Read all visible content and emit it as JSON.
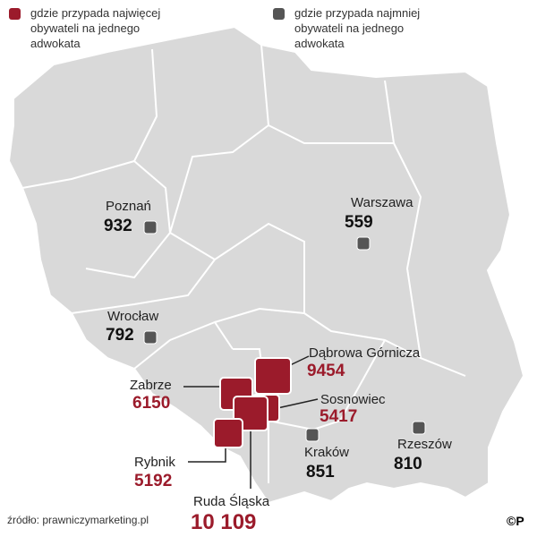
{
  "legend": [
    {
      "text": "gdzie przypada najwięcej obywateli na jednego adwokata",
      "color": "#9b1b2b"
    },
    {
      "text": "gdzie przypada najmniej obywateli na jednego adwokata",
      "color": "#555555"
    }
  ],
  "cities": [
    {
      "name": "Poznań",
      "value": "932",
      "color": "#555555"
    },
    {
      "name": "Warszawa",
      "value": "559",
      "color": "#555555"
    },
    {
      "name": "Wrocław",
      "value": "792",
      "color": "#555555"
    },
    {
      "name": "Dąbrowa Górnicza",
      "value": "9454",
      "color": "#9b1b2b"
    },
    {
      "name": "Zabrze",
      "value": "6150",
      "color": "#9b1b2b"
    },
    {
      "name": "Sosnowiec",
      "value": "5417",
      "color": "#9b1b2b"
    },
    {
      "name": "Kraków",
      "value": "851",
      "color": "#555555"
    },
    {
      "name": "Rzeszów",
      "value": "810",
      "color": "#555555"
    },
    {
      "name": "Rybnik",
      "value": "5192",
      "color": "#9b1b2b"
    },
    {
      "name": "Ruda Śląska",
      "value": "10 109",
      "color": "#9b1b2b"
    }
  ],
  "source": "źródło: prawniczymarketing.pl",
  "logo": "©P"
}
